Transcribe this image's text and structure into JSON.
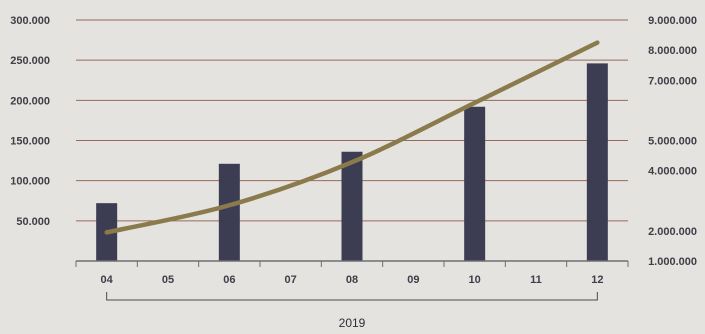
{
  "chart_data": {
    "type": "bar",
    "categories": [
      "04",
      "05",
      "06",
      "07",
      "08",
      "09",
      "10",
      "11",
      "12"
    ],
    "group_label": "2019",
    "series": [
      {
        "axis": "left",
        "kind": "bar",
        "color": "#3c3d52",
        "values": [
          72000,
          null,
          121000,
          null,
          136000,
          null,
          192000,
          null,
          246000
        ]
      },
      {
        "axis": "right",
        "kind": "line",
        "color": "#8a7a4c",
        "values": [
          1950000,
          null,
          2850000,
          null,
          4280000,
          null,
          6250000,
          null,
          8250000
        ]
      }
    ],
    "y_left": {
      "ylim": [
        0,
        300000
      ],
      "ticks": [
        50000,
        100000,
        150000,
        200000,
        250000,
        300000
      ],
      "tick_labels": [
        "50.000",
        "100.000",
        "150.000",
        "200.000",
        "250.000",
        "300.000"
      ]
    },
    "y_right": {
      "ylim": [
        1000000,
        9000000
      ],
      "ticks": [
        1000000,
        2000000,
        4000000,
        5000000,
        7000000,
        8000000,
        9000000
      ],
      "tick_labels": [
        "1.000.000",
        "2.000.000",
        "4.000.000",
        "5.000.000",
        "7.000.000",
        "8.000.000",
        "9.000.000"
      ]
    },
    "gridlines": true,
    "grid_color": "#9a6a58",
    "axis_color": "#6e6e74"
  }
}
